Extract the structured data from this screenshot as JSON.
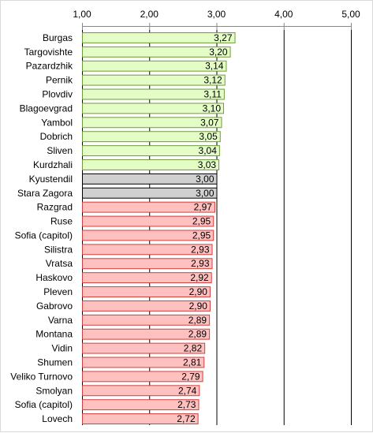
{
  "chart_data": {
    "type": "bar",
    "orientation": "horizontal",
    "categories": [
      "Burgas",
      "Targovishte",
      "Pazardzhik",
      "Pernik",
      "Plovdiv",
      "Blagoevgrad",
      "Yambol",
      "Dobrich",
      "Sliven",
      "Kurdzhali",
      "Kyustendil",
      "Stara Zagora",
      "Razgrad",
      "Ruse",
      "Sofia (capitol)",
      "Silistra",
      "Vratsa",
      "Haskovo",
      "Pleven",
      "Gabrovo",
      "Varna",
      "Montana",
      "Vidin",
      "Shumen",
      "Veliko Turnovo",
      "Smolyan",
      "Sofia (capitol)",
      "Lovech"
    ],
    "values": [
      3.27,
      3.2,
      3.14,
      3.12,
      3.11,
      3.1,
      3.07,
      3.05,
      3.04,
      3.03,
      3.0,
      3.0,
      2.97,
      2.95,
      2.95,
      2.93,
      2.93,
      2.92,
      2.9,
      2.9,
      2.89,
      2.89,
      2.82,
      2.81,
      2.79,
      2.74,
      2.73,
      2.72
    ],
    "value_labels": [
      "3,27",
      "3,20",
      "3,14",
      "3,12",
      "3,11",
      "3,10",
      "3,07",
      "3,05",
      "3,04",
      "3,03",
      "3,00",
      "3,00",
      "2,97",
      "2,95",
      "2,95",
      "2,93",
      "2,93",
      "2,92",
      "2,90",
      "2,90",
      "2,89",
      "2,89",
      "2,82",
      "2,81",
      "2,79",
      "2,74",
      "2,73",
      "2,72"
    ],
    "xlim": [
      1,
      5
    ],
    "ticks": [
      1,
      2,
      3,
      4,
      5
    ],
    "tick_labels": [
      "1,00",
      "2,00",
      "3,00",
      "4,00",
      "5,00"
    ],
    "axis_position": "top",
    "grid": true,
    "title": "",
    "xlabel": "",
    "ylabel": "",
    "colors": {
      "above": {
        "fill": "#e4fcc6",
        "stroke": "#6e9b3a"
      },
      "equal": {
        "fill": "#d0d0d0",
        "stroke": "#000000"
      },
      "below": {
        "fill": "#ffc0c0",
        "stroke": "#d04040"
      },
      "grid": "#000000"
    }
  }
}
